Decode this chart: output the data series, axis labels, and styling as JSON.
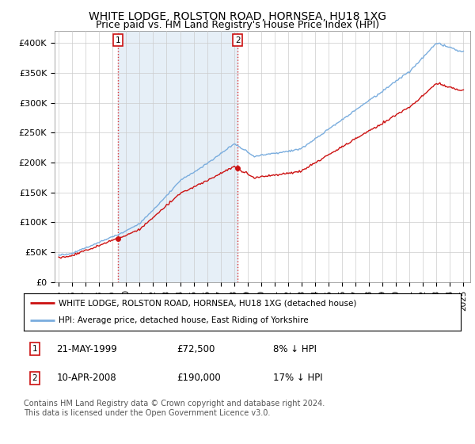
{
  "title": "WHITE LODGE, ROLSTON ROAD, HORNSEA, HU18 1XG",
  "subtitle": "Price paid vs. HM Land Registry's House Price Index (HPI)",
  "ylim": [
    0,
    420000
  ],
  "yticks": [
    0,
    50000,
    100000,
    150000,
    200000,
    250000,
    300000,
    350000,
    400000
  ],
  "ytick_labels": [
    "£0",
    "£50K",
    "£100K",
    "£150K",
    "£200K",
    "£250K",
    "£300K",
    "£350K",
    "£400K"
  ],
  "hpi_color": "#7aadde",
  "hpi_fill_color": "#dce9f5",
  "price_color": "#cc1111",
  "sale1_year": 1999.38,
  "sale1_price": 72500,
  "sale2_year": 2008.27,
  "sale2_price": 190000,
  "legend_line1": "WHITE LODGE, ROLSTON ROAD, HORNSEA, HU18 1XG (detached house)",
  "legend_line2": "HPI: Average price, detached house, East Riding of Yorkshire",
  "footnote": "Contains HM Land Registry data © Crown copyright and database right 2024.\nThis data is licensed under the Open Government Licence v3.0.",
  "background_color": "#ffffff",
  "grid_color": "#cccccc",
  "title_fontsize": 10,
  "subtitle_fontsize": 9,
  "tick_fontsize": 8
}
